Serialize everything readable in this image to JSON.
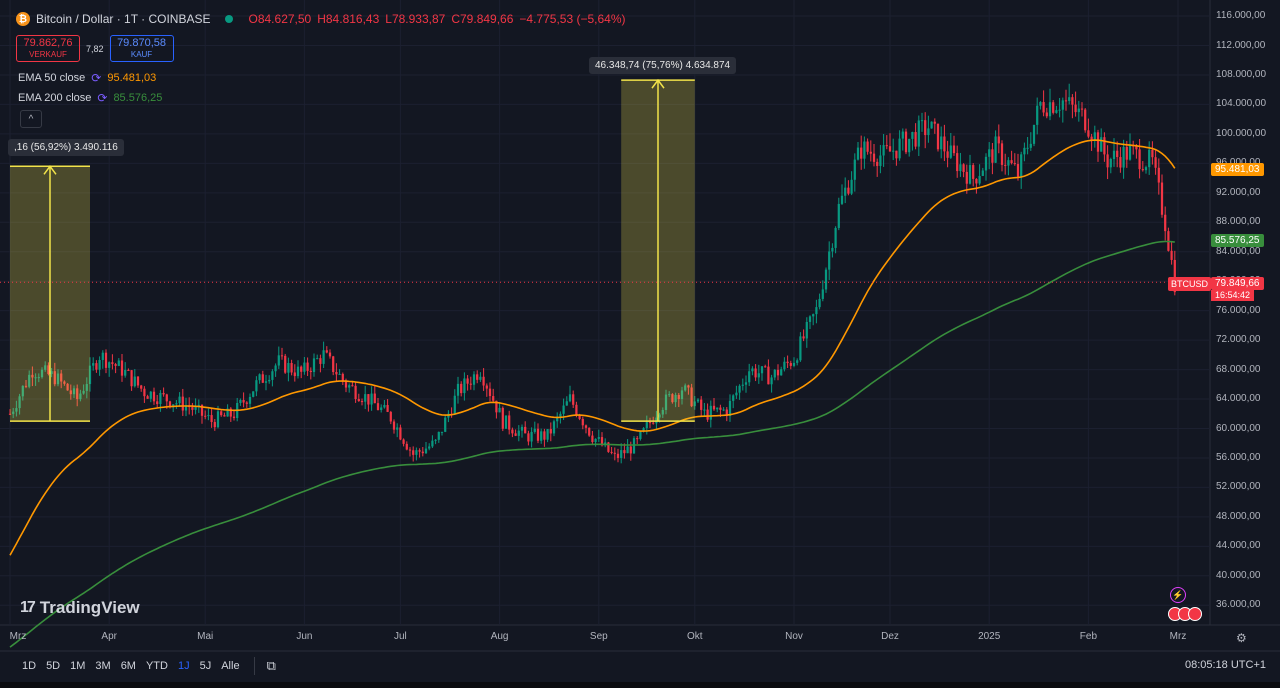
{
  "header": {
    "title": "Bitcoin / Dollar · 1T · COINBASE",
    "open": "O84.627,50",
    "high": "H84.816,43",
    "low": "L78.933,87",
    "close": "C79.849,66",
    "change": "−4.775,53 (−5,64%)",
    "sell_value": "79.862,76",
    "sell_label": "VERKAUF",
    "spread": "7,82",
    "buy_value": "79.870,58",
    "buy_label": "KAUF",
    "collapse_icon": "^"
  },
  "indicators": [
    {
      "label": "EMA 50 close",
      "value": "95.481,03",
      "color": "#ff9800"
    },
    {
      "label": "EMA 200 close",
      "value": "85.576,25",
      "color": "#388e3c"
    }
  ],
  "measurements": [
    {
      "label": ",16 (56,92%) 3.490.116",
      "from": 61000,
      "to": 95600
    },
    {
      "label": "46.348,74 (75,76%) 4.634.874",
      "from": 61000,
      "to": 107300
    }
  ],
  "price_tags": {
    "ema50": "95.481,03",
    "ema200": "85.576,25",
    "last": "79.849,66",
    "ticker": "BTCUSD",
    "countdown": "16:54:42",
    "partial_hidden": "96.000,00"
  },
  "watermark": "TradingView",
  "toolbar": {
    "ranges": [
      "1D",
      "5D",
      "1M",
      "3M",
      "6M",
      "YTD",
      "1J",
      "5J",
      "Alle"
    ],
    "active": "1J",
    "clock": "08:05:18 UTC+1"
  },
  "colors": {
    "up": "#089981",
    "down": "#f23645",
    "ema50": "#ff9800",
    "ema200": "#388e3c",
    "measure_fill": "#f2e34a",
    "background": "#131722"
  },
  "chart_data": {
    "type": "candlestick",
    "ylim": [
      34000,
      117500
    ],
    "y_ticks": [
      "116.000,00",
      "112.000,00",
      "108.000,00",
      "104.000,00",
      "100.000,00",
      "96.000,00",
      "92.000,00",
      "88.000,00",
      "84.000,00",
      "80.000,00",
      "76.000,00",
      "72.000,00",
      "68.000,00",
      "64.000,00",
      "60.000,00",
      "56.000,00",
      "52.000,00",
      "48.000,00",
      "44.000,00",
      "40.000,00",
      "36.000,00"
    ],
    "x_labels": [
      "Mrz",
      "Apr",
      "Mai",
      "Jun",
      "Jul",
      "Aug",
      "Sep",
      "Okt",
      "Nov",
      "Dez",
      "2025",
      "Feb",
      "Mrz"
    ],
    "close_series_weekly": [
      {
        "date": "2024-03-01",
        "close": 62000
      },
      {
        "date": "2024-03-08",
        "close": 68000
      },
      {
        "date": "2024-03-15",
        "close": 67000
      },
      {
        "date": "2024-03-22",
        "close": 64000
      },
      {
        "date": "2024-03-29",
        "close": 70000
      },
      {
        "date": "2024-04-05",
        "close": 68000
      },
      {
        "date": "2024-04-12",
        "close": 65000
      },
      {
        "date": "2024-04-19",
        "close": 64000
      },
      {
        "date": "2024-04-26",
        "close": 63000
      },
      {
        "date": "2024-05-03",
        "close": 61000
      },
      {
        "date": "2024-05-10",
        "close": 62000
      },
      {
        "date": "2024-05-17",
        "close": 66000
      },
      {
        "date": "2024-05-24",
        "close": 69000
      },
      {
        "date": "2024-05-31",
        "close": 67500
      },
      {
        "date": "2024-06-07",
        "close": 70000
      },
      {
        "date": "2024-06-14",
        "close": 66000
      },
      {
        "date": "2024-06-21",
        "close": 64000
      },
      {
        "date": "2024-06-28",
        "close": 61500
      },
      {
        "date": "2024-07-05",
        "close": 56500
      },
      {
        "date": "2024-07-12",
        "close": 58000
      },
      {
        "date": "2024-07-19",
        "close": 65000
      },
      {
        "date": "2024-07-26",
        "close": 68000
      },
      {
        "date": "2024-08-02",
        "close": 61000
      },
      {
        "date": "2024-08-09",
        "close": 59000
      },
      {
        "date": "2024-08-16",
        "close": 59000
      },
      {
        "date": "2024-08-23",
        "close": 64000
      },
      {
        "date": "2024-08-30",
        "close": 59000
      },
      {
        "date": "2024-09-06",
        "close": 56000
      },
      {
        "date": "2024-09-13",
        "close": 58000
      },
      {
        "date": "2024-09-20",
        "close": 63000
      },
      {
        "date": "2024-09-27",
        "close": 65500
      },
      {
        "date": "2024-10-04",
        "close": 62000
      },
      {
        "date": "2024-10-11",
        "close": 62500
      },
      {
        "date": "2024-10-18",
        "close": 68000
      },
      {
        "date": "2024-10-25",
        "close": 67000
      },
      {
        "date": "2024-11-01",
        "close": 69500
      },
      {
        "date": "2024-11-08",
        "close": 76000
      },
      {
        "date": "2024-11-15",
        "close": 90000
      },
      {
        "date": "2024-11-22",
        "close": 98000
      },
      {
        "date": "2024-11-29",
        "close": 97000
      },
      {
        "date": "2024-12-06",
        "close": 99000
      },
      {
        "date": "2024-12-13",
        "close": 101000
      },
      {
        "date": "2024-12-20",
        "close": 97000
      },
      {
        "date": "2024-12-27",
        "close": 94000
      },
      {
        "date": "2025-01-03",
        "close": 98000
      },
      {
        "date": "2025-01-10",
        "close": 94500
      },
      {
        "date": "2025-01-17",
        "close": 104000
      },
      {
        "date": "2025-01-24",
        "close": 104500
      },
      {
        "date": "2025-01-31",
        "close": 102000
      },
      {
        "date": "2025-02-07",
        "close": 96500
      },
      {
        "date": "2025-02-14",
        "close": 97500
      },
      {
        "date": "2025-02-21",
        "close": 96000
      },
      {
        "date": "2025-02-25",
        "close": 88000
      },
      {
        "date": "2025-02-28",
        "close": 79850
      }
    ]
  }
}
